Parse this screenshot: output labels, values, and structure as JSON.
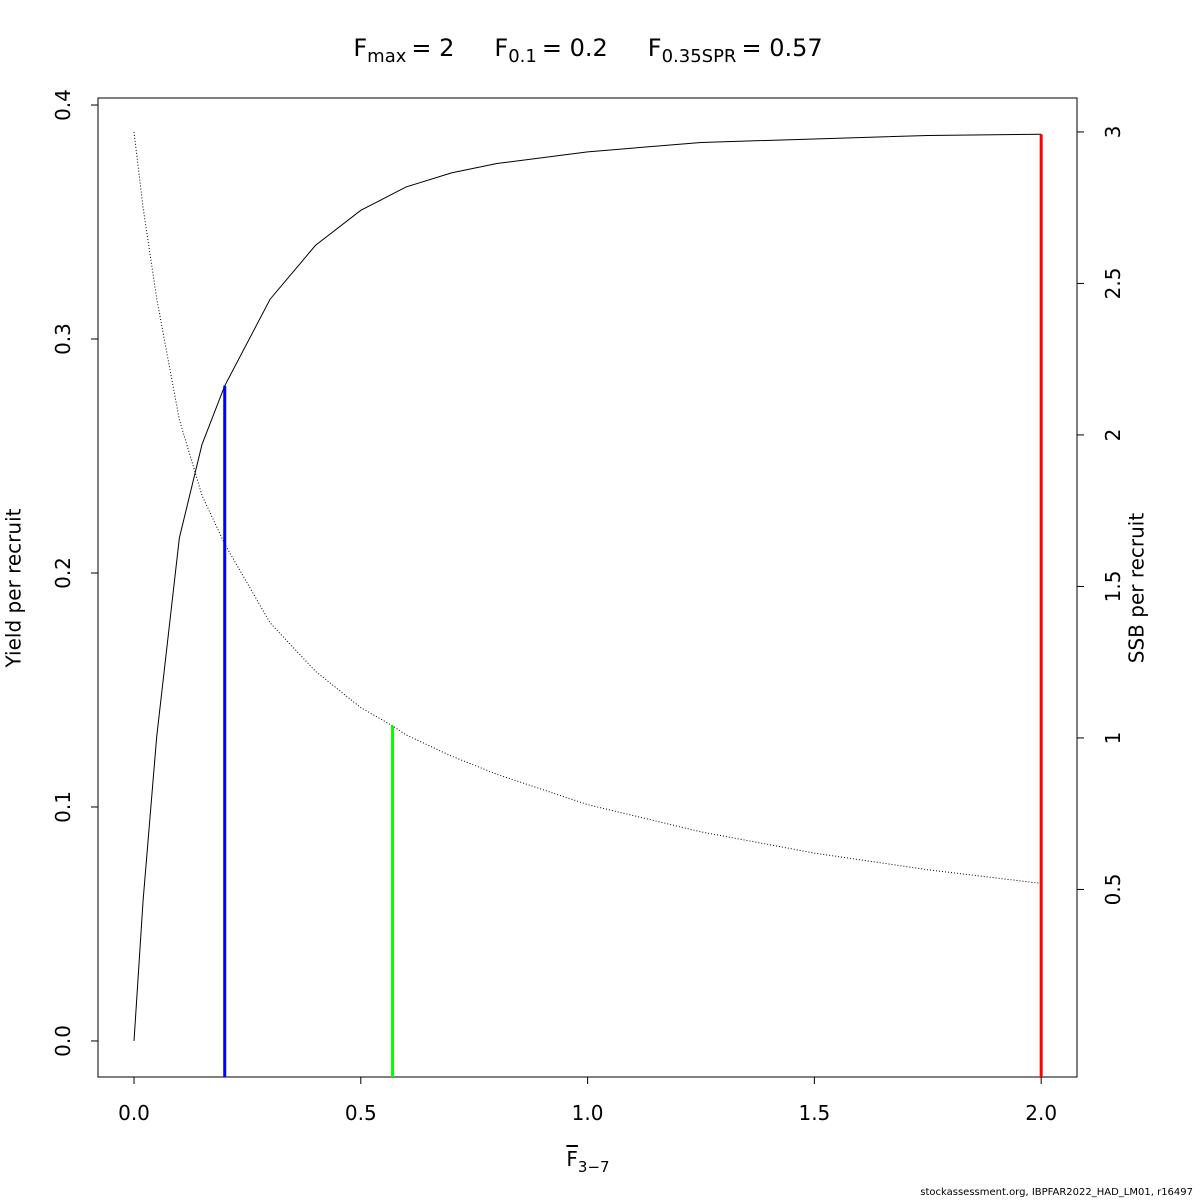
{
  "chart_data": {
    "type": "line",
    "title_parts": [
      {
        "text": "F",
        "sub": "max",
        "rest": "= 2"
      },
      {
        "text": "F",
        "sub": "0.1",
        "rest": "= 0.2"
      },
      {
        "text": "F",
        "sub": "0.35SPR",
        "rest": "= 0.57"
      }
    ],
    "xlabel": {
      "text": "F",
      "sub": "3−7"
    },
    "ylabel": "Yield per recruit",
    "y2label": "SSB per recruit",
    "footer": "stockassessment.org, IBPFAR2022_HAD_LM01, r16497",
    "x": [
      0,
      0.02,
      0.05,
      0.1,
      0.15,
      0.2,
      0.3,
      0.4,
      0.5,
      0.57,
      0.6,
      0.7,
      0.8,
      1.0,
      1.25,
      1.5,
      1.75,
      2.0
    ],
    "series": [
      {
        "color": "#000000",
        "line_style": "solid",
        "values": [
          0,
          0.06,
          0.13,
          0.215,
          0.255,
          0.28,
          0.317,
          0.34,
          0.355,
          0.362,
          0.365,
          0.371,
          0.375,
          0.38,
          0.384,
          0.3855,
          0.387,
          0.3875
        ]
      },
      {
        "color": "#000000",
        "line_style": "dotted",
        "axis": "y2",
        "values": [
          3.0,
          2.75,
          2.45,
          2.05,
          1.8,
          1.64,
          1.38,
          1.22,
          1.1,
          1.04,
          1.01,
          0.94,
          0.88,
          0.78,
          0.69,
          0.62,
          0.565,
          0.52
        ]
      }
    ],
    "refs": [
      {
        "x": 0.2,
        "y": 0.28,
        "color": "#0000ff"
      },
      {
        "x": 0.57,
        "y": 1.04,
        "color": "#00ff00",
        "axis": "y2"
      },
      {
        "x": 2,
        "y": 0.3875,
        "color": "#ff0000"
      }
    ],
    "xlim": [
      -0.0794,
      2.079
    ],
    "xticks": [
      {
        "value": 0,
        "label": "0.0"
      },
      0.5,
      {
        "value": 1,
        "label": "1.0"
      },
      1.5,
      {
        "value": 2,
        "label": "2.0"
      }
    ],
    "ylim": [
      -0.0154,
      0.403
    ],
    "yticks": [
      {
        "value": 0,
        "label": "0.0"
      },
      0.1,
      0.2,
      0.3,
      0.4
    ],
    "y2lim": [
      -0.119,
      3.112
    ],
    "y2ticks": [
      0.5,
      1,
      1.5,
      2,
      2.5,
      3
    ]
  }
}
